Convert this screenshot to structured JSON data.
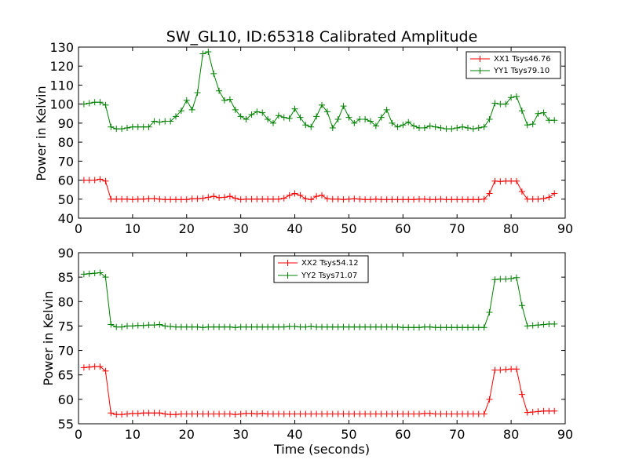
{
  "chart_data": [
    {
      "type": "line",
      "title": "SW_GL10, ID:65318 Calibrated Amplitude",
      "xlabel": "",
      "ylabel": "Power in Kelvin",
      "xlim": [
        0,
        90
      ],
      "ylim": [
        40,
        130
      ],
      "xticks": [
        "0",
        "10",
        "20",
        "30",
        "40",
        "50",
        "60",
        "70",
        "80",
        "90"
      ],
      "yticks": [
        "40",
        "50",
        "60",
        "70",
        "80",
        "90",
        "100",
        "110",
        "120",
        "130"
      ],
      "grid": false,
      "legend": "top-right",
      "x": [
        1,
        2,
        3,
        4,
        5,
        6,
        7,
        8,
        9,
        10,
        11,
        12,
        13,
        14,
        15,
        16,
        17,
        18,
        19,
        20,
        21,
        22,
        23,
        24,
        25,
        26,
        27,
        28,
        29,
        30,
        31,
        32,
        33,
        34,
        35,
        36,
        37,
        38,
        39,
        40,
        41,
        42,
        43,
        44,
        45,
        46,
        47,
        48,
        49,
        50,
        51,
        52,
        53,
        54,
        55,
        56,
        57,
        58,
        59,
        60,
        61,
        62,
        63,
        64,
        65,
        66,
        67,
        68,
        69,
        70,
        71,
        72,
        73,
        74,
        75,
        76,
        77,
        78,
        79,
        80,
        81,
        82,
        83,
        84,
        85,
        86,
        87,
        88
      ],
      "series": [
        {
          "name": "XX1 Tsys46.76",
          "color": "#ff0000",
          "values": [
            60,
            60,
            60,
            60.5,
            59.5,
            50,
            50,
            50,
            50,
            49.8,
            50,
            50,
            50.2,
            50.3,
            50,
            49.8,
            49.8,
            49.8,
            49.8,
            49.8,
            50.2,
            50.2,
            50.5,
            51,
            51.5,
            50.8,
            51,
            51.5,
            50.5,
            49.8,
            50,
            50,
            50,
            50,
            50,
            50,
            50,
            50.5,
            52,
            53,
            52,
            50.2,
            49.8,
            51.5,
            52,
            50.2,
            50,
            50,
            49.8,
            50,
            50.2,
            50,
            49.8,
            49.8,
            50,
            49.8,
            49.8,
            49.8,
            49.8,
            49.8,
            49.8,
            49.8,
            50,
            50,
            49.8,
            49.8,
            50,
            49.8,
            49.8,
            49.8,
            49.8,
            49.8,
            49.8,
            49.8,
            50,
            53,
            59.5,
            59.3,
            59.5,
            59.5,
            59.5,
            54,
            50,
            50,
            50,
            50.3,
            51,
            53
          ]
        },
        {
          "name": "YY1 Tsys79.10",
          "color": "#008000",
          "values": [
            100,
            100.5,
            101,
            101,
            99.5,
            88,
            87,
            87,
            87.5,
            88,
            88,
            88,
            88,
            91,
            90.5,
            91,
            91,
            93.5,
            96.5,
            102,
            97,
            106,
            126.5,
            127.5,
            116,
            107,
            102,
            102.5,
            97,
            93.5,
            92,
            94.5,
            96,
            95.5,
            92,
            90,
            94,
            93,
            92.5,
            97.5,
            93,
            89,
            88,
            93.5,
            99.5,
            96,
            87.5,
            92,
            99,
            93,
            90,
            92,
            92,
            91,
            88.5,
            93,
            97,
            90,
            88,
            89,
            90.5,
            88.5,
            87.5,
            87.5,
            88.5,
            88,
            87.5,
            87,
            87,
            87.5,
            88,
            87.5,
            87,
            87.5,
            88,
            92,
            100.5,
            100,
            100,
            103.5,
            104,
            96.5,
            89,
            89.5,
            95,
            95.5,
            91.5,
            91.5
          ]
        }
      ]
    },
    {
      "type": "line",
      "title": "",
      "xlabel": "Time (seconds)",
      "ylabel": "Power in Kelvin",
      "xlim": [
        0,
        90
      ],
      "ylim": [
        55,
        90
      ],
      "xticks": [
        "0",
        "10",
        "20",
        "30",
        "40",
        "50",
        "60",
        "70",
        "80",
        "90"
      ],
      "yticks": [
        "55",
        "60",
        "65",
        "70",
        "75",
        "80",
        "85",
        "90"
      ],
      "grid": false,
      "legend": "top-center",
      "x": [
        1,
        2,
        3,
        4,
        5,
        6,
        7,
        8,
        9,
        10,
        11,
        12,
        13,
        14,
        15,
        16,
        17,
        18,
        19,
        20,
        21,
        22,
        23,
        24,
        25,
        26,
        27,
        28,
        29,
        30,
        31,
        32,
        33,
        34,
        35,
        36,
        37,
        38,
        39,
        40,
        41,
        42,
        43,
        44,
        45,
        46,
        47,
        48,
        49,
        50,
        51,
        52,
        53,
        54,
        55,
        56,
        57,
        58,
        59,
        60,
        61,
        62,
        63,
        64,
        65,
        66,
        67,
        68,
        69,
        70,
        71,
        72,
        73,
        74,
        75,
        76,
        77,
        78,
        79,
        80,
        81,
        82,
        83,
        84,
        85,
        86,
        87,
        88
      ],
      "series": [
        {
          "name": "XX2 Tsys54.12",
          "color": "#ff0000",
          "values": [
            66.5,
            66.6,
            66.7,
            66.7,
            65.8,
            57.2,
            56.9,
            56.9,
            57,
            57.1,
            57.1,
            57.2,
            57.2,
            57.2,
            57.2,
            57,
            56.9,
            56.9,
            57,
            57,
            57,
            57,
            57,
            57,
            57,
            57,
            57,
            57,
            56.9,
            57,
            57.1,
            57.1,
            57,
            57.1,
            57,
            57,
            57,
            57,
            57,
            57,
            57,
            57,
            57,
            57,
            57,
            57,
            57,
            57,
            57,
            57,
            57,
            57,
            57,
            57,
            57,
            57,
            57,
            57,
            57,
            57,
            57,
            57,
            57,
            57.1,
            57.1,
            57,
            57,
            57,
            57,
            57,
            57,
            57,
            57,
            57,
            57,
            60,
            66,
            66,
            66.1,
            66.2,
            66.2,
            61,
            57.3,
            57.4,
            57.5,
            57.6,
            57.6,
            57.6
          ]
        },
        {
          "name": "YY2 Tsys71.07",
          "color": "#008000",
          "values": [
            85.6,
            85.7,
            85.8,
            85.9,
            85,
            75.3,
            74.8,
            74.8,
            75,
            75,
            75.1,
            75.1,
            75.2,
            75.2,
            75.3,
            75,
            74.9,
            74.8,
            74.8,
            74.8,
            74.8,
            74.8,
            74.7,
            74.8,
            74.8,
            74.8,
            74.8,
            74.8,
            74.7,
            74.8,
            74.8,
            74.8,
            74.8,
            74.8,
            74.8,
            74.8,
            74.8,
            74.8,
            74.9,
            74.9,
            74.8,
            74.8,
            74.9,
            74.8,
            74.8,
            74.8,
            74.8,
            74.8,
            74.8,
            74.8,
            74.8,
            74.8,
            74.8,
            74.8,
            74.8,
            74.8,
            74.8,
            74.8,
            74.8,
            74.7,
            74.7,
            74.7,
            74.7,
            74.8,
            74.8,
            74.7,
            74.7,
            74.7,
            74.7,
            74.7,
            74.7,
            74.7,
            74.7,
            74.7,
            74.7,
            77.8,
            84.5,
            84.6,
            84.6,
            84.7,
            84.9,
            79.2,
            75,
            75.1,
            75.2,
            75.3,
            75.4,
            75.4
          ]
        }
      ]
    }
  ]
}
